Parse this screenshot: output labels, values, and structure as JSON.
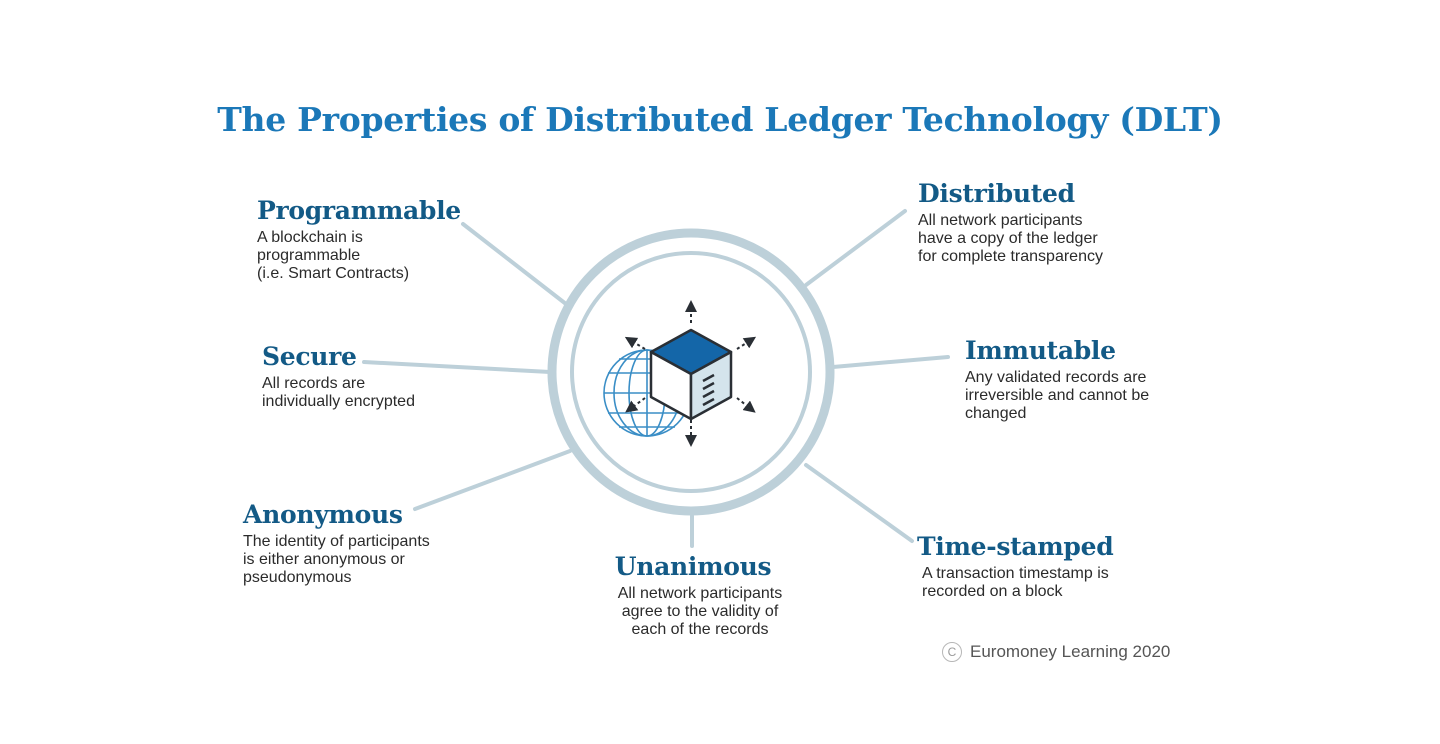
{
  "title": "The Properties of Distributed Ledger Technology (DLT)",
  "colors": {
    "title": "#1b78b8",
    "heading": "#135a86",
    "connector": "#bdd0d9",
    "ring": "#bdd0d9",
    "cube_top": "#1466a8",
    "cube_left": "#ffffff",
    "cube_right": "#d4e4ec",
    "outline": "#2a2f35",
    "globe": "#3a8ec6"
  },
  "icons": {
    "center": "blockchain-cube-icon",
    "globe": "globe-icon",
    "arrows": "outward-arrow-icon",
    "copyright": "copyright-icon"
  },
  "properties": {
    "programmable": {
      "heading": "Programmable",
      "lines": [
        "A blockchain is",
        "programmable",
        "(i.e. Smart Contracts)"
      ]
    },
    "secure": {
      "heading": "Secure",
      "lines": [
        "All records are",
        "individually encrypted"
      ]
    },
    "anonymous": {
      "heading": "Anonymous",
      "lines": [
        "The identity of participants",
        "is either anonymous or",
        "pseudonymous"
      ]
    },
    "unanimous": {
      "heading": "Unanimous",
      "lines": [
        "All network participants",
        "agree to the validity of",
        "each of the records"
      ]
    },
    "distributed": {
      "heading": "Distributed",
      "lines": [
        "All network participants",
        "have a copy of the ledger",
        "for complete transparency"
      ]
    },
    "immutable": {
      "heading": "Immutable",
      "lines": [
        "Any validated records are",
        "irreversible and cannot be",
        "changed"
      ]
    },
    "time_stamped": {
      "heading": "Time-stamped",
      "lines": [
        "A transaction timestamp is",
        "recorded on a block"
      ]
    }
  },
  "footer": {
    "copyright_symbol": "C",
    "text": "Euromoney Learning 2020"
  }
}
